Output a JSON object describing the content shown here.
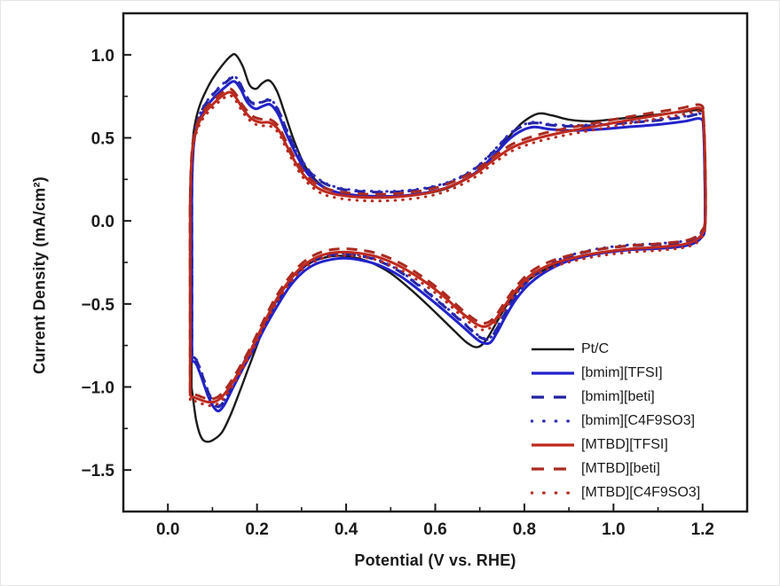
{
  "chart_data": {
    "type": "line",
    "description": "Cyclic voltammograms (current density vs potential) of Pt/C in different ionic liquid electrolytes",
    "title": "",
    "xlabel": "Potential (V vs. RHE)",
    "ylabel": "Current Density (mA/cm²)",
    "xlim": [
      -0.1,
      1.3
    ],
    "ylim": [
      -1.75,
      1.25
    ],
    "x_major_ticks": [
      0.0,
      0.2,
      0.4,
      0.6,
      0.8,
      1.0,
      1.2
    ],
    "x_tick_labels": [
      "0.0",
      "0.2",
      "0.4",
      "0.6",
      "0.8",
      "1.0",
      "1.2"
    ],
    "x_minor_ticks": [
      0.1,
      0.3,
      0.5,
      0.7,
      0.9,
      1.1
    ],
    "y_major_ticks": [
      1.0,
      0.5,
      0.0,
      -0.5,
      -1.0,
      -1.5
    ],
    "y_tick_labels": [
      "1.0",
      "0.5",
      "0.0",
      "−0.5",
      "−1.0",
      "−1.5"
    ],
    "y_minor_ticks": [
      0.75,
      0.25,
      -0.25,
      -0.75,
      -1.25
    ],
    "grid": false,
    "legend_position": "inside-lower-right",
    "axis_color": "#1a1a1a",
    "series": [
      {
        "name": "Pt/C",
        "color": "#1a1a1a",
        "line_style": "solid",
        "points": [
          [
            0.053,
            -1.0
          ],
          [
            0.053,
            -0.4
          ],
          [
            0.053,
            0.2
          ],
          [
            0.056,
            0.48
          ],
          [
            0.062,
            0.6
          ],
          [
            0.072,
            0.7
          ],
          [
            0.085,
            0.78
          ],
          [
            0.1,
            0.855
          ],
          [
            0.12,
            0.93
          ],
          [
            0.14,
            0.99
          ],
          [
            0.152,
            1.0
          ],
          [
            0.168,
            0.93
          ],
          [
            0.183,
            0.82
          ],
          [
            0.198,
            0.795
          ],
          [
            0.212,
            0.83
          ],
          [
            0.228,
            0.845
          ],
          [
            0.245,
            0.78
          ],
          [
            0.262,
            0.65
          ],
          [
            0.285,
            0.47
          ],
          [
            0.31,
            0.32
          ],
          [
            0.34,
            0.225
          ],
          [
            0.37,
            0.18
          ],
          [
            0.41,
            0.155
          ],
          [
            0.46,
            0.148
          ],
          [
            0.52,
            0.15
          ],
          [
            0.58,
            0.165
          ],
          [
            0.63,
            0.2
          ],
          [
            0.68,
            0.27
          ],
          [
            0.72,
            0.36
          ],
          [
            0.76,
            0.49
          ],
          [
            0.795,
            0.59
          ],
          [
            0.83,
            0.645
          ],
          [
            0.862,
            0.635
          ],
          [
            0.9,
            0.61
          ],
          [
            0.95,
            0.6
          ],
          [
            1.01,
            0.615
          ],
          [
            1.08,
            0.635
          ],
          [
            1.15,
            0.655
          ],
          [
            1.195,
            0.665
          ],
          [
            1.202,
            0.6
          ],
          [
            1.206,
            0.3
          ],
          [
            1.206,
            -0.02
          ],
          [
            1.198,
            -0.095
          ],
          [
            1.183,
            -0.13
          ],
          [
            1.155,
            -0.152
          ],
          [
            1.1,
            -0.166
          ],
          [
            1.04,
            -0.172
          ],
          [
            0.97,
            -0.195
          ],
          [
            0.91,
            -0.23
          ],
          [
            0.86,
            -0.275
          ],
          [
            0.81,
            -0.355
          ],
          [
            0.77,
            -0.47
          ],
          [
            0.74,
            -0.6
          ],
          [
            0.715,
            -0.715
          ],
          [
            0.695,
            -0.76
          ],
          [
            0.672,
            -0.735
          ],
          [
            0.64,
            -0.655
          ],
          [
            0.6,
            -0.55
          ],
          [
            0.55,
            -0.425
          ],
          [
            0.5,
            -0.315
          ],
          [
            0.455,
            -0.25
          ],
          [
            0.415,
            -0.218
          ],
          [
            0.38,
            -0.21
          ],
          [
            0.35,
            -0.222
          ],
          [
            0.32,
            -0.252
          ],
          [
            0.29,
            -0.31
          ],
          [
            0.265,
            -0.39
          ],
          [
            0.24,
            -0.5
          ],
          [
            0.215,
            -0.645
          ],
          [
            0.19,
            -0.82
          ],
          [
            0.165,
            -1.0
          ],
          [
            0.142,
            -1.16
          ],
          [
            0.122,
            -1.27
          ],
          [
            0.104,
            -1.315
          ],
          [
            0.088,
            -1.33
          ],
          [
            0.075,
            -1.305
          ],
          [
            0.064,
            -1.21
          ],
          [
            0.057,
            -1.08
          ],
          [
            0.053,
            -1.0
          ]
        ]
      },
      {
        "name": "[bmim][TFSI]",
        "color": "#2222cc",
        "line_style": "solid",
        "points": [
          [
            0.054,
            -0.845
          ],
          [
            0.054,
            -0.3
          ],
          [
            0.054,
            0.2
          ],
          [
            0.058,
            0.46
          ],
          [
            0.066,
            0.57
          ],
          [
            0.077,
            0.645
          ],
          [
            0.09,
            0.7
          ],
          [
            0.108,
            0.755
          ],
          [
            0.128,
            0.805
          ],
          [
            0.148,
            0.84
          ],
          [
            0.163,
            0.795
          ],
          [
            0.178,
            0.715
          ],
          [
            0.196,
            0.675
          ],
          [
            0.212,
            0.69
          ],
          [
            0.23,
            0.7
          ],
          [
            0.248,
            0.64
          ],
          [
            0.265,
            0.53
          ],
          [
            0.29,
            0.39
          ],
          [
            0.315,
            0.28
          ],
          [
            0.345,
            0.21
          ],
          [
            0.38,
            0.172
          ],
          [
            0.42,
            0.155
          ],
          [
            0.47,
            0.148
          ],
          [
            0.53,
            0.152
          ],
          [
            0.59,
            0.175
          ],
          [
            0.64,
            0.215
          ],
          [
            0.69,
            0.29
          ],
          [
            0.73,
            0.39
          ],
          [
            0.765,
            0.49
          ],
          [
            0.795,
            0.545
          ],
          [
            0.822,
            0.565
          ],
          [
            0.855,
            0.553
          ],
          [
            0.9,
            0.545
          ],
          [
            0.96,
            0.55
          ],
          [
            1.03,
            0.565
          ],
          [
            1.1,
            0.58
          ],
          [
            1.16,
            0.6
          ],
          [
            1.195,
            0.615
          ],
          [
            1.202,
            0.55
          ],
          [
            1.205,
            0.25
          ],
          [
            1.205,
            -0.04
          ],
          [
            1.197,
            -0.1
          ],
          [
            1.18,
            -0.135
          ],
          [
            1.15,
            -0.155
          ],
          [
            1.09,
            -0.168
          ],
          [
            1.03,
            -0.176
          ],
          [
            0.96,
            -0.2
          ],
          [
            0.9,
            -0.24
          ],
          [
            0.855,
            -0.295
          ],
          [
            0.815,
            -0.37
          ],
          [
            0.783,
            -0.465
          ],
          [
            0.758,
            -0.575
          ],
          [
            0.738,
            -0.675
          ],
          [
            0.722,
            -0.735
          ],
          [
            0.7,
            -0.725
          ],
          [
            0.665,
            -0.645
          ],
          [
            0.62,
            -0.54
          ],
          [
            0.57,
            -0.43
          ],
          [
            0.52,
            -0.33
          ],
          [
            0.47,
            -0.263
          ],
          [
            0.43,
            -0.235
          ],
          [
            0.395,
            -0.225
          ],
          [
            0.362,
            -0.235
          ],
          [
            0.33,
            -0.262
          ],
          [
            0.3,
            -0.315
          ],
          [
            0.272,
            -0.4
          ],
          [
            0.246,
            -0.51
          ],
          [
            0.22,
            -0.63
          ],
          [
            0.193,
            -0.77
          ],
          [
            0.168,
            -0.89
          ],
          [
            0.145,
            -1.01
          ],
          [
            0.126,
            -1.11
          ],
          [
            0.113,
            -1.145
          ],
          [
            0.101,
            -1.115
          ],
          [
            0.091,
            -1.06
          ],
          [
            0.081,
            -0.985
          ],
          [
            0.071,
            -0.91
          ],
          [
            0.062,
            -0.855
          ],
          [
            0.054,
            -0.845
          ]
        ]
      },
      {
        "name": "[bmim][beti]",
        "color": "#2222a0",
        "line_style": "dashed",
        "base": "[bmim][TFSI]",
        "delta_i": 0.025
      },
      {
        "name": "[bmim][C4F9SO3]",
        "color": "#2d2db8",
        "line_style": "dotted",
        "base": "[bmim][TFSI]",
        "delta_i": 0.03
      },
      {
        "name": "[MTBD][TFSI]",
        "color": "#c02a1e",
        "line_style": "solid",
        "points": [
          [
            0.05,
            -1.055
          ],
          [
            0.05,
            -0.45
          ],
          [
            0.05,
            0.1
          ],
          [
            0.054,
            0.4
          ],
          [
            0.061,
            0.52
          ],
          [
            0.071,
            0.6
          ],
          [
            0.084,
            0.655
          ],
          [
            0.1,
            0.7
          ],
          [
            0.118,
            0.745
          ],
          [
            0.138,
            0.775
          ],
          [
            0.152,
            0.745
          ],
          [
            0.168,
            0.675
          ],
          [
            0.188,
            0.615
          ],
          [
            0.208,
            0.593
          ],
          [
            0.228,
            0.592
          ],
          [
            0.248,
            0.55
          ],
          [
            0.266,
            0.455
          ],
          [
            0.29,
            0.335
          ],
          [
            0.315,
            0.245
          ],
          [
            0.345,
            0.185
          ],
          [
            0.38,
            0.158
          ],
          [
            0.42,
            0.145
          ],
          [
            0.47,
            0.14
          ],
          [
            0.53,
            0.148
          ],
          [
            0.59,
            0.172
          ],
          [
            0.64,
            0.215
          ],
          [
            0.69,
            0.285
          ],
          [
            0.73,
            0.365
          ],
          [
            0.768,
            0.435
          ],
          [
            0.8,
            0.472
          ],
          [
            0.84,
            0.505
          ],
          [
            0.89,
            0.535
          ],
          [
            0.95,
            0.565
          ],
          [
            1.02,
            0.6
          ],
          [
            1.09,
            0.632
          ],
          [
            1.15,
            0.658
          ],
          [
            1.195,
            0.678
          ],
          [
            1.202,
            0.6
          ],
          [
            1.206,
            0.3
          ],
          [
            1.206,
            -0.01
          ],
          [
            1.198,
            -0.08
          ],
          [
            1.183,
            -0.118
          ],
          [
            1.155,
            -0.142
          ],
          [
            1.1,
            -0.158
          ],
          [
            1.04,
            -0.168
          ],
          [
            0.97,
            -0.19
          ],
          [
            0.91,
            -0.222
          ],
          [
            0.86,
            -0.262
          ],
          [
            0.815,
            -0.325
          ],
          [
            0.78,
            -0.42
          ],
          [
            0.755,
            -0.515
          ],
          [
            0.733,
            -0.6
          ],
          [
            0.714,
            -0.635
          ],
          [
            0.693,
            -0.622
          ],
          [
            0.658,
            -0.55
          ],
          [
            0.615,
            -0.445
          ],
          [
            0.565,
            -0.345
          ],
          [
            0.515,
            -0.265
          ],
          [
            0.468,
            -0.215
          ],
          [
            0.425,
            -0.193
          ],
          [
            0.39,
            -0.188
          ],
          [
            0.357,
            -0.198
          ],
          [
            0.327,
            -0.228
          ],
          [
            0.297,
            -0.285
          ],
          [
            0.268,
            -0.375
          ],
          [
            0.24,
            -0.49
          ],
          [
            0.212,
            -0.635
          ],
          [
            0.185,
            -0.785
          ],
          [
            0.158,
            -0.915
          ],
          [
            0.132,
            -1.025
          ],
          [
            0.112,
            -1.08
          ],
          [
            0.096,
            -1.092
          ],
          [
            0.082,
            -1.086
          ],
          [
            0.068,
            -1.072
          ],
          [
            0.057,
            -1.062
          ],
          [
            0.05,
            -1.055
          ]
        ]
      },
      {
        "name": "[MTBD][beti]",
        "color": "#aa2a20",
        "line_style": "dashed",
        "base": "[MTBD][TFSI]",
        "delta_i": 0.02
      },
      {
        "name": "[MTBD][C4F9SO3]",
        "color": "#b82a20",
        "line_style": "dotted",
        "base": "[MTBD][TFSI]",
        "delta_i": -0.02
      }
    ]
  }
}
